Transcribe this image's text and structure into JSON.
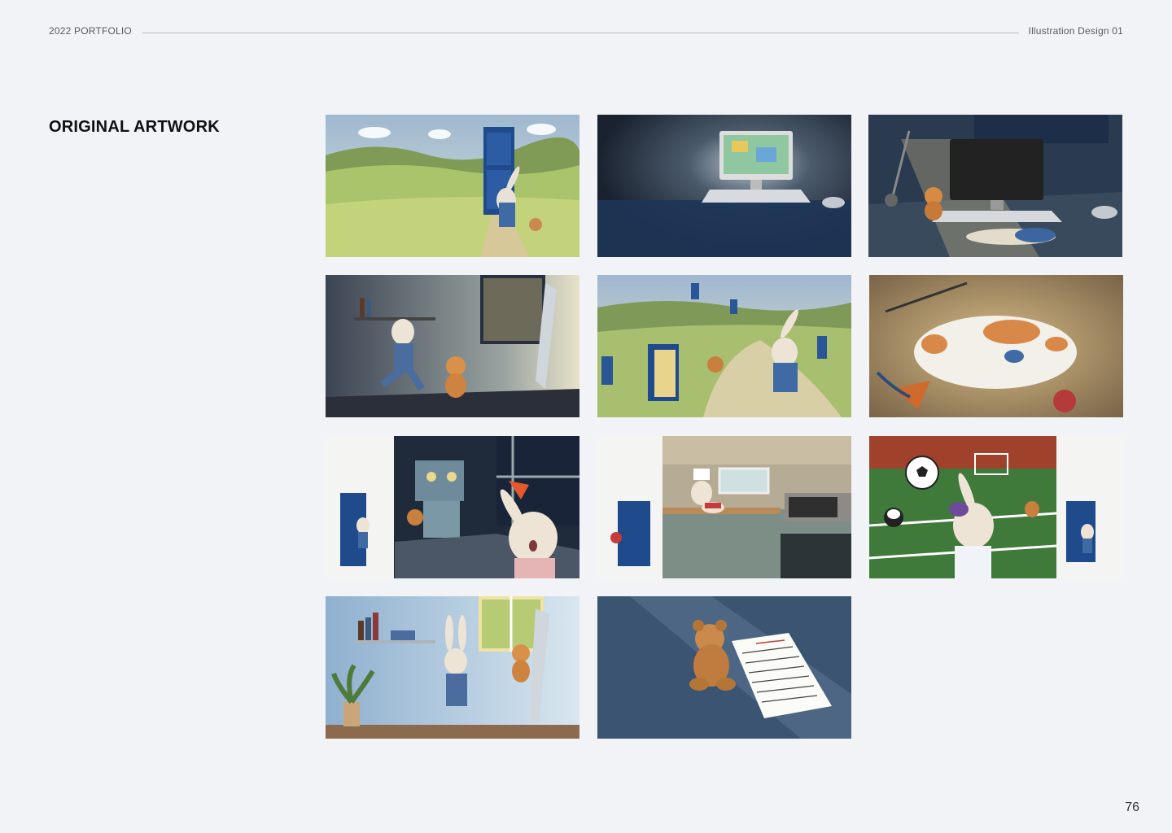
{
  "header": {
    "left": "2022 PORTFOLIO",
    "right": "Illustration Design 01"
  },
  "section": {
    "title": "ORIGINAL ARTWORK"
  },
  "artworks": [
    {
      "id": "field-door",
      "icon": "rabbit-at-door-in-field"
    },
    {
      "id": "computer-glow",
      "icon": "glowing-computer-dark-room"
    },
    {
      "id": "toys-at-desk",
      "icon": "bear-and-rabbit-under-desk-lamp"
    },
    {
      "id": "rabbit-bear-dance",
      "icon": "rabbit-and-bear-in-light"
    },
    {
      "id": "doors-meadow",
      "icon": "rabbit-following-bear-through-doors"
    },
    {
      "id": "sleeping-cat",
      "icon": "cat-sleeping-with-rabbit-toy"
    },
    {
      "id": "robot-room",
      "icon": "scared-rabbit-robot-room"
    },
    {
      "id": "kitchen-cake",
      "icon": "chef-rabbit-baking-cake"
    },
    {
      "id": "soccer-field",
      "icon": "rabbit-playing-soccer"
    },
    {
      "id": "rabbit-room",
      "icon": "rabbit-walking-in-bright-room"
    },
    {
      "id": "bear-letter",
      "icon": "teddy-bear-with-letter"
    }
  ],
  "page_number": "76"
}
